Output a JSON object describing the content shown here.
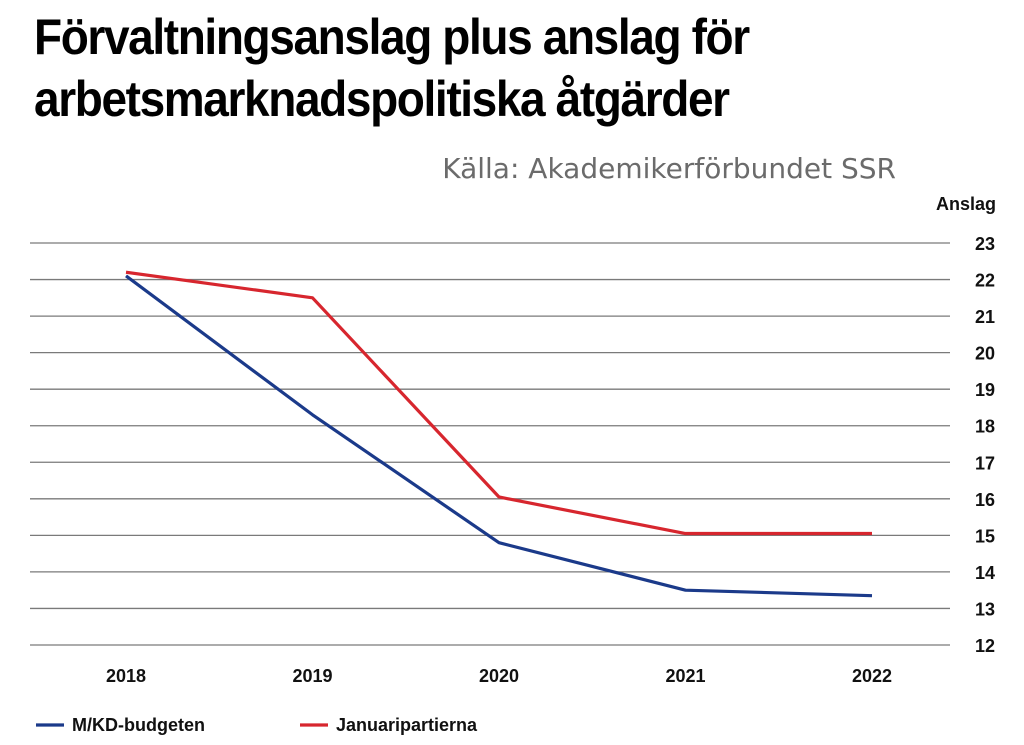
{
  "title": "Förvaltningsanslag plus anslag för arbetsmarknadspolitiska åtgärder",
  "source": "Källa: Akademikerförbundet SSR",
  "chart_data": {
    "type": "line",
    "ylabel": "Anslag",
    "ylim": [
      12,
      23
    ],
    "yticks": [
      23,
      22,
      21,
      20,
      19,
      18,
      17,
      16,
      15,
      14,
      13,
      12
    ],
    "categories": [
      "2018",
      "2019",
      "2020",
      "2021",
      "2022"
    ],
    "grid": true,
    "y_axis_side": "right",
    "legend_position": "bottom-left",
    "series": [
      {
        "name": "M/KD-budgeten",
        "color": "#1b3a8a",
        "values": [
          22.1,
          18.3,
          14.8,
          13.5,
          13.35
        ]
      },
      {
        "name": "Januaripartierna",
        "color": "#d7262e",
        "values": [
          22.2,
          21.5,
          16.05,
          15.05,
          15.05
        ]
      }
    ]
  }
}
